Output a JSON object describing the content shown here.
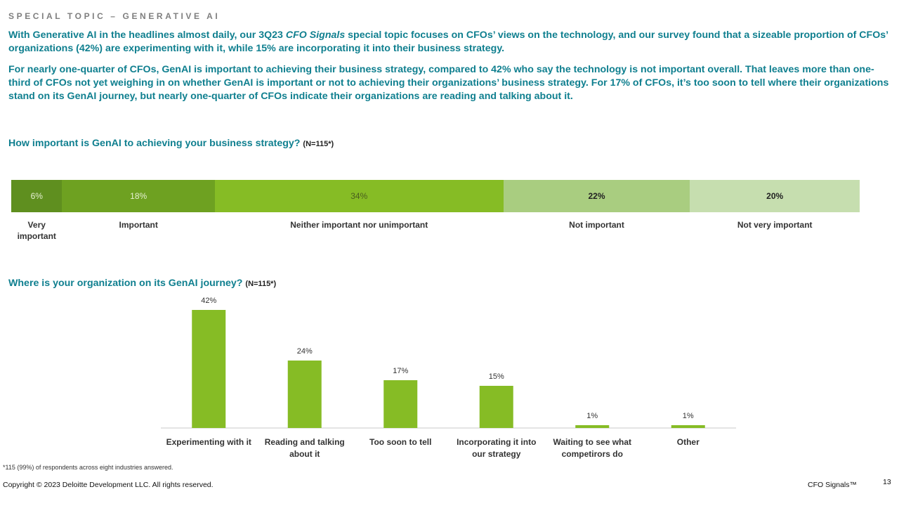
{
  "eyebrow": "SPECIAL TOPIC – GENERATIVE AI",
  "intro": {
    "p1_a": "With Generative AI in the headlines almost daily, our 3Q23 ",
    "p1_em": "CFO Signals",
    "p1_b": " special topic focuses on CFOs’ views on the technology, and our survey found that a sizeable proportion of CFOs’ organizations (42%) are experimenting with it, while 15% are incorporating it into their business strategy.",
    "p2": "For nearly one-quarter of CFOs, GenAI is important to achieving their business strategy, compared to 42% who say the technology is not important overall. That leaves more than one-third of CFOs not yet weighing in on whether GenAI is important or not to achieving their organizations’ business strategy. For 17% of CFOs, it’s too soon to tell where their organizations stand on its GenAI journey, but nearly one-quarter of CFOs indicate their organizations are reading and talking about it."
  },
  "chart_data": [
    {
      "type": "bar",
      "orientation": "stacked-horizontal",
      "title": "How important is GenAI to achieving your business strategy?",
      "note": "(N=115*)",
      "categories": [
        "Very important",
        "Important",
        "Neither important nor unimportant",
        "Not important",
        "Not very important"
      ],
      "values": [
        6,
        18,
        34,
        22,
        20
      ],
      "value_labels": [
        "6%",
        "18%",
        "34%",
        "22%",
        "20%"
      ],
      "colors": [
        "#5f8f1f",
        "#6ea121",
        "#86bc25",
        "#a9cd80",
        "#c6deaf"
      ],
      "label_colors": [
        "#e6f0d3",
        "#e6f0d3",
        "#4a5e1f",
        "#222222",
        "#222222"
      ]
    },
    {
      "type": "bar",
      "title": "Where is your organization on its GenAI journey?",
      "note": "(N=115*)",
      "categories": [
        "Experimenting with it",
        "Reading and talking about it",
        "Too soon to tell",
        "Incorporating it into our strategy",
        "Waiting to see what competirors do",
        "Other"
      ],
      "category_lines": [
        [
          "Experimenting with it"
        ],
        [
          "Reading and talking",
          "about it"
        ],
        [
          "Too soon to tell"
        ],
        [
          "Incorporating it into",
          "our strategy"
        ],
        [
          "Waiting to see what",
          "competirors do"
        ],
        [
          "Other"
        ]
      ],
      "values": [
        42,
        24,
        17,
        15,
        1,
        1
      ],
      "value_labels": [
        "42%",
        "24%",
        "17%",
        "15%",
        "1%",
        "1%"
      ],
      "color": "#86bc25",
      "ylim": [
        0,
        42
      ],
      "axis_color": "#c8c8c8"
    }
  ],
  "footnote": "*115 (99%) of respondents across eight industries answered.",
  "copyright": "Copyright © 2023 Deloitte Development LLC. All rights reserved.",
  "brand": "CFO Signals™",
  "page_number": "13"
}
